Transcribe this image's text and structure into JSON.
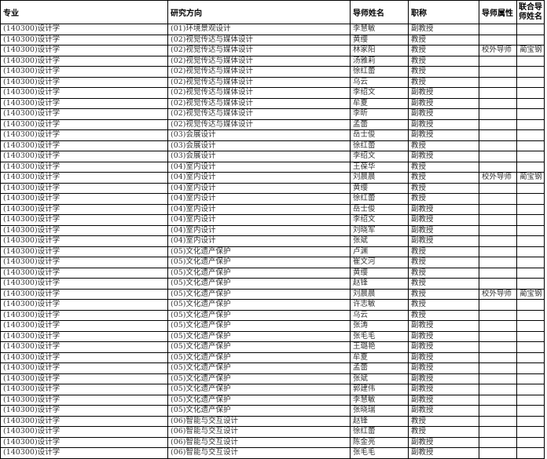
{
  "headers": [
    "专业",
    "研究方向",
    "导师姓名",
    "职称",
    "导师属性",
    "联合导师姓名"
  ],
  "rows": [
    [
      "(140300)设计学",
      "(01)环境景观设计",
      "李慧敏",
      "副教授",
      "",
      ""
    ],
    [
      "(140300)设计学",
      "(02)视觉传达与媒体设计",
      "黄缨",
      "教授",
      "",
      ""
    ],
    [
      "(140300)设计学",
      "(02)视觉传达与媒体设计",
      "林家阳",
      "教授",
      "校外导师",
      "蔺宝钢"
    ],
    [
      "(140300)设计学",
      "(02)视觉传达与媒体设计",
      "汤雅莉",
      "教授",
      "",
      ""
    ],
    [
      "(140300)设计学",
      "(02)视觉传达与媒体设计",
      "徐红蕾",
      "教授",
      "",
      ""
    ],
    [
      "(140300)设计学",
      "(02)视觉传达与媒体设计",
      "乌云",
      "教授",
      "",
      ""
    ],
    [
      "(140300)设计学",
      "(02)视觉传达与媒体设计",
      "李绍文",
      "副教授",
      "",
      ""
    ],
    [
      "(140300)设计学",
      "(02)视觉传达与媒体设计",
      "牟夏",
      "副教授",
      "",
      ""
    ],
    [
      "(140300)设计学",
      "(02)视觉传达与媒体设计",
      "李昕",
      "副教授",
      "",
      ""
    ],
    [
      "(140300)设计学",
      "(02)视觉传达与媒体设计",
      "孟蕾",
      "副教授",
      "",
      ""
    ],
    [
      "(140300)设计学",
      "(03)会展设计",
      "岳士俊",
      "副教授",
      "",
      ""
    ],
    [
      "(140300)设计学",
      "(03)会展设计",
      "徐红蕾",
      "教授",
      "",
      ""
    ],
    [
      "(140300)设计学",
      "(03)会展设计",
      "李绍文",
      "副教授",
      "",
      ""
    ],
    [
      "(140300)设计学",
      "(04)室内设计",
      "王葆华",
      "教授",
      "",
      ""
    ],
    [
      "(140300)设计学",
      "(04)室内设计",
      "刘晨晨",
      "教授",
      "校外导师",
      "蔺宝钢"
    ],
    [
      "(140300)设计学",
      "(04)室内设计",
      "黄缨",
      "教授",
      "",
      ""
    ],
    [
      "(140300)设计学",
      "(04)室内设计",
      "徐红蕾",
      "教授",
      "",
      ""
    ],
    [
      "(140300)设计学",
      "(04)室内设计",
      "岳士俊",
      "副教授",
      "",
      ""
    ],
    [
      "(140300)设计学",
      "(04)室内设计",
      "李绍文",
      "副教授",
      "",
      ""
    ],
    [
      "(140300)设计学",
      "(04)室内设计",
      "刘晓军",
      "副教授",
      "",
      ""
    ],
    [
      "(140300)设计学",
      "(04)室内设计",
      "张斌",
      "副教授",
      "",
      ""
    ],
    [
      "(140300)设计学",
      "(05)文化遗产保护",
      "卢渊",
      "教授",
      "",
      ""
    ],
    [
      "(140300)设计学",
      "(05)文化遗产保护",
      "崔文河",
      "教授",
      "",
      ""
    ],
    [
      "(140300)设计学",
      "(05)文化遗产保护",
      "黄缨",
      "教授",
      "",
      ""
    ],
    [
      "(140300)设计学",
      "(05)文化遗产保护",
      "赵锋",
      "教授",
      "",
      ""
    ],
    [
      "(140300)设计学",
      "(05)文化遗产保护",
      "刘晨晨",
      "教授",
      "校外导师",
      "蔺宝钢"
    ],
    [
      "(140300)设计学",
      "(05)文化遗产保护",
      "许志敏",
      "教授",
      "",
      ""
    ],
    [
      "(140300)设计学",
      "(05)文化遗产保护",
      "乌云",
      "教授",
      "",
      ""
    ],
    [
      "(140300)设计学",
      "(05)文化遗产保护",
      "张涛",
      "副教授",
      "",
      ""
    ],
    [
      "(140300)设计学",
      "(05)文化遗产保护",
      "张毛毛",
      "副教授",
      "",
      ""
    ],
    [
      "(140300)设计学",
      "(05)文化遗产保护",
      "王璐艳",
      "副教授",
      "",
      ""
    ],
    [
      "(140300)设计学",
      "(05)文化遗产保护",
      "牟夏",
      "副教授",
      "",
      ""
    ],
    [
      "(140300)设计学",
      "(05)文化遗产保护",
      "孟蕾",
      "副教授",
      "",
      ""
    ],
    [
      "(140300)设计学",
      "(05)文化遗产保护",
      "张斌",
      "副教授",
      "",
      ""
    ],
    [
      "(140300)设计学",
      "(05)文化遗产保护",
      "郭建伟",
      "副教授",
      "",
      ""
    ],
    [
      "(140300)设计学",
      "(05)文化遗产保护",
      "李慧敏",
      "副教授",
      "",
      ""
    ],
    [
      "(140300)设计学",
      "(05)文化遗产保护",
      "张晓瑞",
      "副教授",
      "",
      ""
    ],
    [
      "(140300)设计学",
      "(06)智能与交互设计",
      "赵锋",
      "教授",
      "",
      ""
    ],
    [
      "(140300)设计学",
      "(06)智能与交互设计",
      "徐红蕾",
      "教授",
      "",
      ""
    ],
    [
      "(140300)设计学",
      "(06)智能与交互设计",
      "陈金亮",
      "副教授",
      "",
      ""
    ],
    [
      "(140300)设计学",
      "(06)智能与交互设计",
      "张毛毛",
      "副教授",
      "",
      ""
    ]
  ]
}
